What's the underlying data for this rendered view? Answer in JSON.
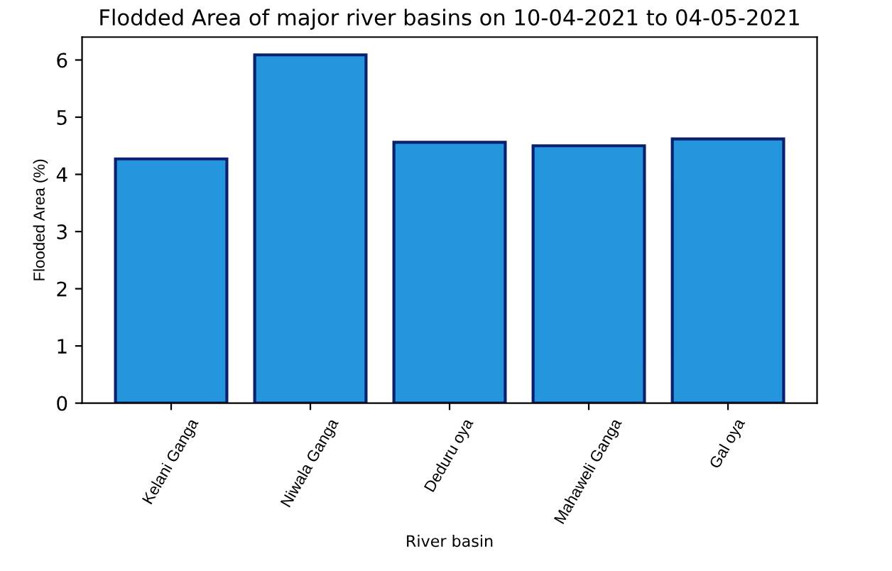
{
  "chart_data": {
    "type": "bar",
    "title": "Flodded Area of major river basins on 10-04-2021 to 04-05-2021",
    "xlabel": "River basin",
    "ylabel": "Flooded Area (%)",
    "categories": [
      "Kelani Ganga",
      "Niwala Ganga",
      "Deduru oya",
      "Mahaweli Ganga",
      "Gal oya"
    ],
    "values": [
      4.27,
      6.09,
      4.56,
      4.5,
      4.62
    ],
    "color": "#2596dd",
    "ylim": [
      0,
      6.4
    ],
    "yticks": [
      0,
      1,
      2,
      3,
      4,
      5,
      6
    ],
    "grid": false,
    "legend": false
  }
}
